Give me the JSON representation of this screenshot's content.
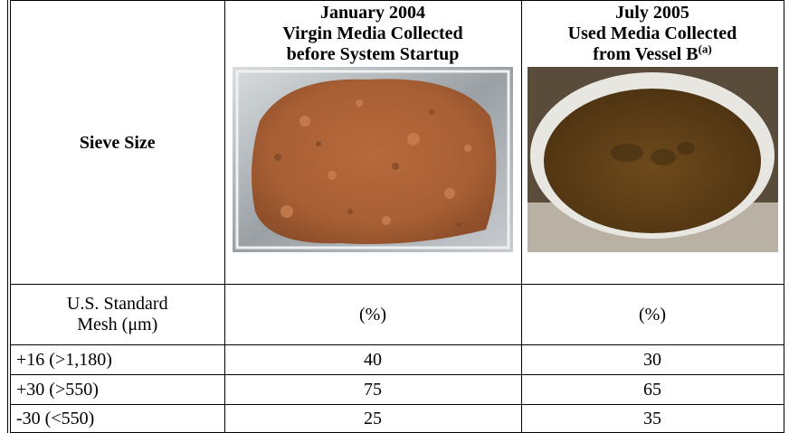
{
  "table": {
    "header": {
      "col0": "Sieve Size",
      "col1": [
        "January 2004",
        "Virgin Media Collected",
        "before System Startup"
      ],
      "col2": [
        "July 2005",
        "Used Media Collected",
        "from Vessel B"
      ],
      "col2_note": "(a)"
    },
    "units": {
      "col0": [
        "U.S. Standard",
        "Mesh (μm)"
      ],
      "col1": "(%)",
      "col2": "(%)"
    },
    "rows": [
      [
        "+16 (>1,180)",
        40,
        30
      ],
      [
        "+30 (>550)",
        75,
        65
      ],
      [
        "-30 (<550)",
        25,
        35
      ]
    ]
  }
}
